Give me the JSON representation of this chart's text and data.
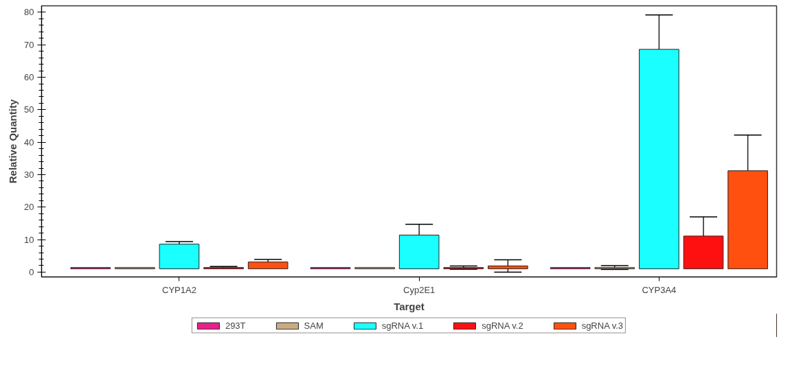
{
  "chart_data": {
    "type": "bar",
    "xlabel": "Target",
    "ylabel": "Relative Quantity",
    "categories": [
      "CYP1A2",
      "Cyp2E1",
      "CYP3A4"
    ],
    "series": [
      {
        "name": "293T",
        "color": "#e8208a",
        "base": [
          1,
          1,
          1
        ],
        "values": [
          0.4,
          0.4,
          0.4
        ]
      },
      {
        "name": "SAM",
        "color": "#c8aa84",
        "base": [
          1,
          1,
          1
        ],
        "values": [
          0.4,
          0.4,
          0.4
        ],
        "errors": [
          null,
          null,
          0.6
        ]
      },
      {
        "name": "sgRNA v.1",
        "color": "#1affff",
        "base": [
          1,
          1,
          1
        ],
        "values": [
          7.6,
          10.4,
          67.6
        ],
        "errors": [
          0.8,
          3.3,
          10.6
        ]
      },
      {
        "name": "sgRNA v.2",
        "color": "#ff1010",
        "base": [
          1,
          1,
          1
        ],
        "values": [
          0.4,
          0.4,
          10.1
        ],
        "errors": [
          0.3,
          0.5,
          5.9
        ]
      },
      {
        "name": "sgRNA v.3",
        "color": "#ff5010",
        "base": [
          1,
          1,
          1
        ],
        "values": [
          2.1,
          0.9,
          30.2
        ],
        "errors": [
          0.8,
          1.9,
          11
        ]
      }
    ],
    "ylim": [
      -1.5,
      82
    ],
    "yticks": [
      0,
      10,
      20,
      30,
      40,
      50,
      60,
      70,
      80
    ],
    "grid": false,
    "legend": "bottom"
  }
}
